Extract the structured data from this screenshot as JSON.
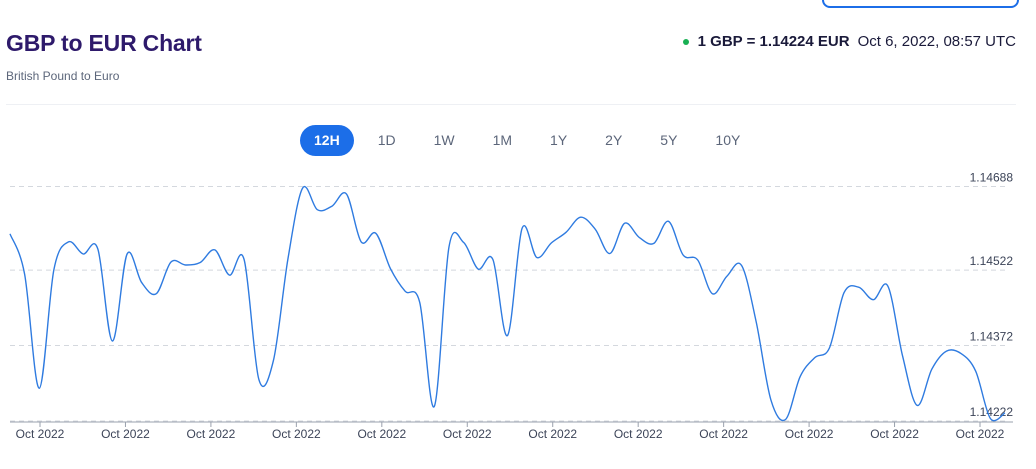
{
  "header": {
    "title": "GBP to EUR Chart",
    "subtitle": "British Pound to Euro",
    "rate": "1 GBP = 1.14224 EUR",
    "timestamp": "Oct 6, 2022, 08:57 UTC",
    "status_color": "#18b053"
  },
  "ranges": {
    "items": [
      "12H",
      "1D",
      "1W",
      "1M",
      "1Y",
      "2Y",
      "5Y",
      "10Y"
    ],
    "selected": "12H"
  },
  "colors": {
    "accent": "#1c6ee8",
    "line": "#2f7be0",
    "title": "#2e1a6b"
  },
  "chart_data": {
    "type": "line",
    "title": "GBP to EUR Chart",
    "xlabel": "",
    "ylabel": "",
    "ylim": [
      1.1422,
      1.14705
    ],
    "grid": true,
    "y_ticks": [
      "1.14688",
      "1.14522",
      "1.14372",
      "1.14222"
    ],
    "x_ticks": [
      "Oct 2022",
      "Oct 2022",
      "Oct 2022",
      "Oct 2022",
      "Oct 2022",
      "Oct 2022",
      "Oct 2022",
      "Oct 2022",
      "Oct 2022",
      "Oct 2022",
      "Oct 2022",
      "Oct 2022"
    ],
    "series": [
      {
        "values": [
          1.14594,
          1.14514,
          1.14287,
          1.14523,
          1.14578,
          1.14554,
          1.14564,
          1.14381,
          1.14554,
          1.14497,
          1.14475,
          1.14538,
          1.14532,
          1.14537,
          1.14562,
          1.14512,
          1.14543,
          1.14305,
          1.14342,
          1.14545,
          1.14685,
          1.14642,
          1.14649,
          1.14673,
          1.14578,
          1.14595,
          1.14525,
          1.1448,
          1.14458,
          1.14251,
          1.14568,
          1.14577,
          1.14524,
          1.14543,
          1.14392,
          1.14605,
          1.14547,
          1.14576,
          1.14597,
          1.14627,
          1.14603,
          1.14555,
          1.14615,
          1.14587,
          1.14575,
          1.14619,
          1.14552,
          1.14542,
          1.14475,
          1.1451,
          1.14531,
          1.14418,
          1.14264,
          1.14225,
          1.1431,
          1.14348,
          1.14367,
          1.14477,
          1.14488,
          1.14463,
          1.1449,
          1.14351,
          1.14253,
          1.14325,
          1.14361,
          1.14356,
          1.14321,
          1.14227,
          1.14238
        ]
      }
    ]
  }
}
